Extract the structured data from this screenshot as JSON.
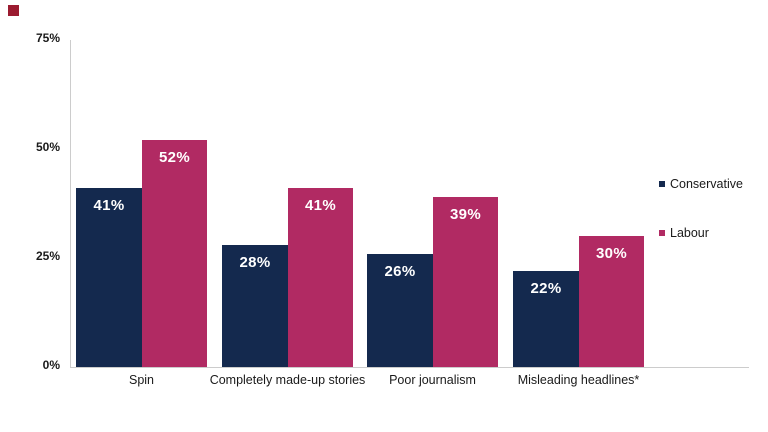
{
  "brand": {
    "mark_color": "#9B1B30"
  },
  "chart_data": {
    "type": "bar",
    "title": "",
    "categories": [
      "Spin",
      "Completely made-up stories",
      "Poor journalism",
      "Misleading headlines*"
    ],
    "series": [
      {
        "name": "Conservative",
        "color": "#14294E",
        "values": [
          41,
          28,
          26,
          22
        ]
      },
      {
        "name": "Labour",
        "color": "#B12A63",
        "values": [
          52,
          41,
          39,
          30
        ]
      }
    ],
    "data_labels": [
      [
        "41%",
        "28%",
        "26%",
        "22%"
      ],
      [
        "52%",
        "41%",
        "39%",
        "30%"
      ]
    ],
    "value_suffix": "%",
    "ylim": [
      0,
      75
    ],
    "yticks": [
      0,
      25,
      50,
      75
    ],
    "ytick_labels": [
      "0%",
      "25%",
      "50%",
      "75%"
    ],
    "xlabel": "",
    "ylabel": "",
    "grid": false,
    "legend_position": "right"
  }
}
